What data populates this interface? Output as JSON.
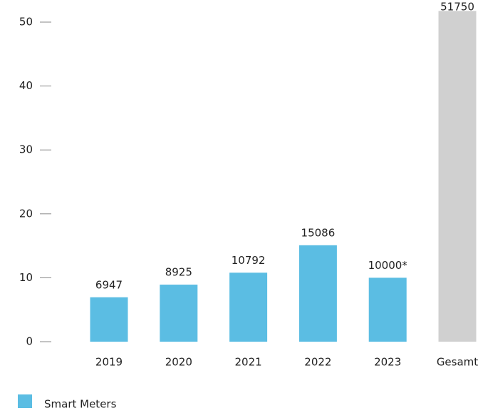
{
  "chart_data": {
    "type": "bar",
    "categories": [
      "2019",
      "2020",
      "2021",
      "2022",
      "2023",
      "Gesamt"
    ],
    "series": [
      {
        "name": "Smart Meters",
        "color": "#5bbde3",
        "values": [
          6.947,
          8.925,
          10.792,
          15.086,
          10.0,
          51.75
        ],
        "value_labels": [
          "6947",
          "8925",
          "10792",
          "15086",
          "10000*",
          "51750"
        ],
        "colors": [
          "#5bbde3",
          "#5bbde3",
          "#5bbde3",
          "#5bbde3",
          "#5bbde3",
          "#d0d0d0"
        ]
      }
    ],
    "ylim": [
      0,
      50
    ],
    "yticks": [
      0,
      10,
      20,
      30,
      40,
      50
    ],
    "grid": false,
    "legend": "bottom-left"
  }
}
